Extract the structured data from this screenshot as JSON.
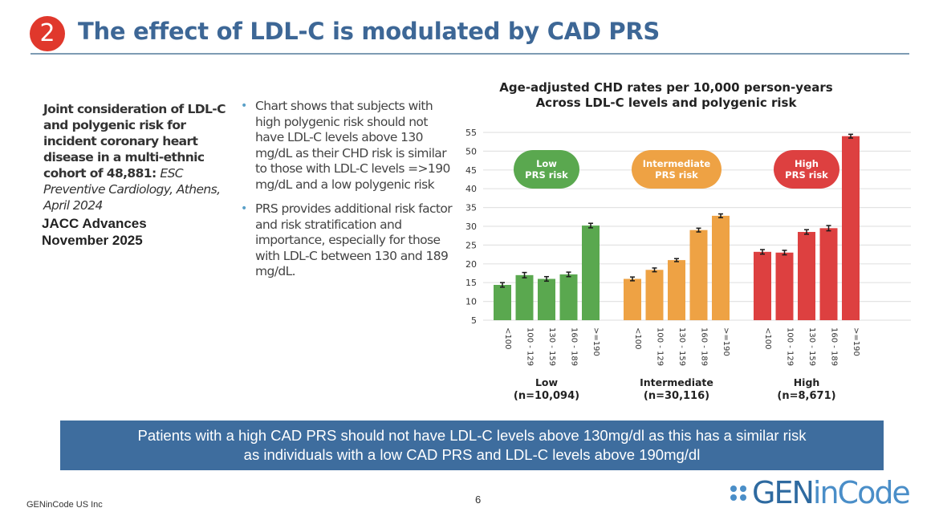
{
  "header": {
    "badge_number": "2",
    "title": "The effect of LDL-C is modulated by CAD PRS"
  },
  "study": {
    "title_bold": "Joint consideration of LDL-C and polygenic risk for incident coronary heart disease in a multi-ethnic cohort of 48,881:",
    "title_italic": "ESC Preventive Cardiology, Athens, April 2024",
    "journal_line1": "JACC Advances",
    "journal_line2": "November 2025"
  },
  "bullets": [
    "Chart shows that subjects with high polygenic risk should not have LDL-C levels above 130 mg/dL as their CHD risk is similar to those with LDL-C levels =>190 mg/dL and a low polygenic risk",
    "PRS provides additional risk factor and risk stratification and importance, especially for those with LDL-C between 130 and 189 mg/dL."
  ],
  "callout": {
    "line1": "Patients with a high CAD PRS should not have LDL-C levels above 130mg/dl as this has a similar risk",
    "line2": "as individuals with a low CAD PRS and LDL-C levels above 190mg/dl"
  },
  "footer": {
    "company": "GENinCode US Inc",
    "page_number": "6",
    "logo_text_a": "GEN",
    "logo_text_b": "inCode"
  },
  "chart_data": {
    "type": "bar",
    "title": "Age-adjusted CHD rates per 10,000 person-years",
    "subtitle": "Across LDL-C levels and polygenic risk",
    "xlabel": "",
    "ylabel": "",
    "ylim": [
      5,
      55
    ],
    "yticks": [
      5,
      10,
      15,
      20,
      25,
      30,
      35,
      40,
      45,
      50,
      55
    ],
    "grid": true,
    "categories": [
      "<100",
      "100 - 129",
      "130 - 159",
      "160 - 189",
      ">=190"
    ],
    "groups": [
      {
        "name": "Low",
        "n_label": "(n=10,094)",
        "badge_line1": "Low",
        "badge_line2": "PRS risk",
        "color": "#5aa84f",
        "values": [
          14.4,
          17.0,
          16.0,
          17.2,
          30.2
        ],
        "errors": [
          0.6,
          0.7,
          0.6,
          0.6,
          0.6
        ]
      },
      {
        "name": "Intermediate",
        "n_label": "(n=30,116)",
        "badge_line1": "Intermediate",
        "badge_line2": "PRS risk",
        "color": "#eea244",
        "values": [
          16.0,
          18.4,
          21.0,
          29.0,
          32.8
        ],
        "errors": [
          0.5,
          0.5,
          0.4,
          0.5,
          0.5
        ]
      },
      {
        "name": "High",
        "n_label": "(n=8,671)",
        "badge_line1": "High",
        "badge_line2": "PRS risk",
        "color": "#dd4040",
        "values": [
          23.2,
          23.0,
          28.5,
          29.5,
          54.0
        ],
        "errors": [
          0.6,
          0.6,
          0.6,
          0.7,
          0.5
        ]
      }
    ]
  }
}
